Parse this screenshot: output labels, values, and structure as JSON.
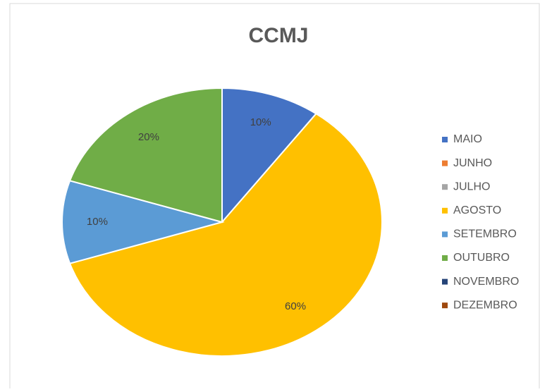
{
  "chart_data": {
    "type": "pie",
    "title": "CCMJ",
    "categories": [
      "MAIO",
      "JUNHO",
      "JULHO",
      "AGOSTO",
      "SETEMBRO",
      "OUTUBRO",
      "NOVEMBRO",
      "DEZEMBRO"
    ],
    "values": [
      10,
      0,
      0,
      60,
      10,
      20,
      0,
      0
    ],
    "value_labels": [
      "10%",
      null,
      null,
      "60%",
      "10%",
      "20%",
      null,
      null
    ],
    "colors": [
      "#4472c4",
      "#ed7d31",
      "#a5a5a5",
      "#ffc000",
      "#5b9bd5",
      "#70ad47",
      "#264478",
      "#9e480e"
    ],
    "legend": "right"
  }
}
